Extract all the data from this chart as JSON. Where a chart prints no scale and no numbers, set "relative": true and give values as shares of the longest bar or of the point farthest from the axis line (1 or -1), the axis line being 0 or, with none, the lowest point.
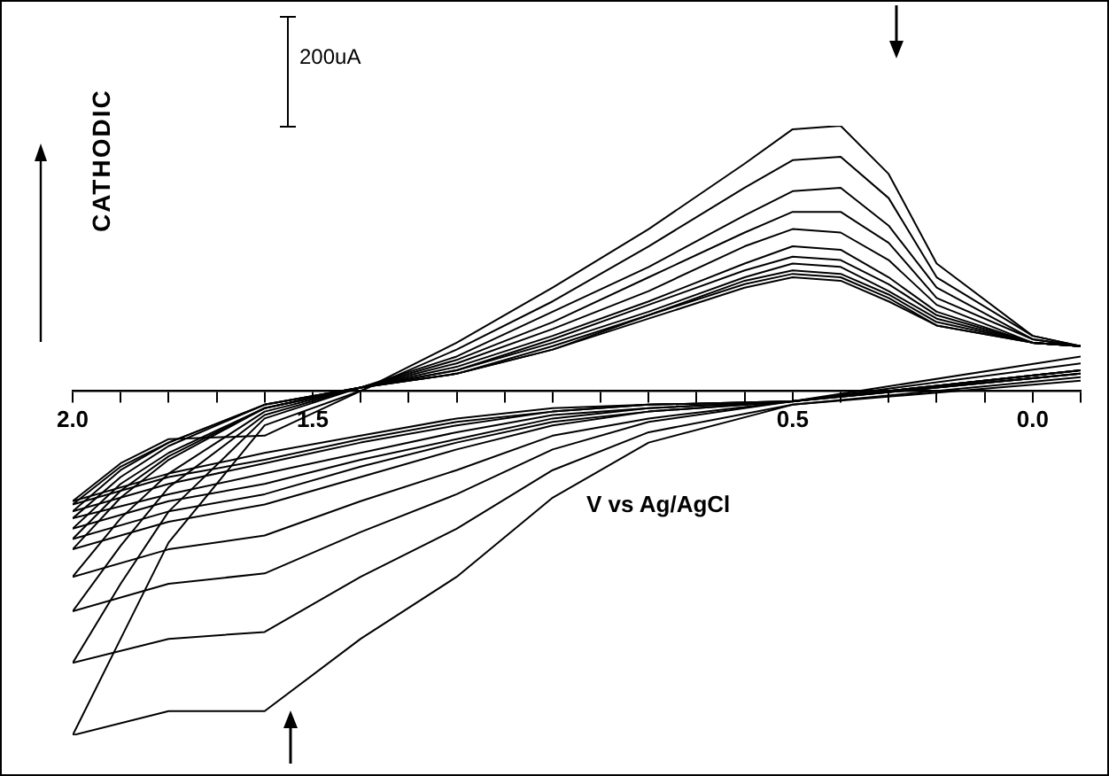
{
  "chart_data": {
    "type": "line",
    "xlabel": "V vs Ag/AgCl",
    "ylabel": "CATHODIC",
    "annotations": [
      "200uA"
    ],
    "relative": true,
    "legend": false,
    "marker": "none",
    "xlim": [
      2,
      -0.1
    ],
    "xticks": [
      {
        "value": 2,
        "label": "2.0"
      },
      {
        "value": 1.9,
        "label": null
      },
      {
        "value": 1.8,
        "label": null
      },
      {
        "value": 1.7,
        "label": null
      },
      {
        "value": 1.6,
        "label": null
      },
      {
        "value": 1.5,
        "label": "1.5"
      },
      {
        "value": 1.4,
        "label": null
      },
      {
        "value": 1.3,
        "label": null
      },
      {
        "value": 1.2,
        "label": null
      },
      {
        "value": 1.1,
        "label": null
      },
      {
        "value": 1,
        "label": null
      },
      {
        "value": 0.9,
        "label": null
      },
      {
        "value": 0.8,
        "label": null
      },
      {
        "value": 0.7,
        "label": null
      },
      {
        "value": 0.6,
        "label": null
      },
      {
        "value": 0.5,
        "label": "0.5"
      },
      {
        "value": 0.4,
        "label": null
      },
      {
        "value": 0.3,
        "label": null
      },
      {
        "value": 0.2,
        "label": null
      },
      {
        "value": 0.1,
        "label": null
      },
      {
        "value": 0,
        "label": "0.0"
      },
      {
        "value": -0.1,
        "label": null
      }
    ],
    "series": [
      {
        "color": "#000000",
        "x": [
          2.0,
          1.9,
          1.8,
          1.6,
          1.4,
          1.2,
          1.0,
          0.8,
          0.6,
          0.5,
          0.4,
          0.3,
          0.2,
          0.0,
          -0.1
        ],
        "values": [
          -0.32,
          -0.21,
          -0.14,
          -0.13,
          0,
          0.14,
          0.3,
          0.47,
          0.66,
          0.76,
          0.77,
          0.63,
          0.37,
          0.16,
          0.13
        ]
      },
      {
        "color": "#000000",
        "x": [
          -0.1,
          0.5,
          0.8,
          1.0,
          1.2,
          1.4,
          1.6,
          1.8,
          2.0
        ],
        "values": [
          0.03,
          -0.04,
          -0.15,
          -0.31,
          -0.54,
          -0.72,
          -0.93,
          -0.93,
          -1.0
        ]
      },
      {
        "color": "#000000",
        "x": [
          2.0,
          1.9,
          1.8,
          1.6,
          1.4,
          1.2,
          1.0,
          0.8,
          0.6,
          0.5,
          0.4,
          0.3,
          0.2,
          0.0,
          -0.1
        ],
        "values": [
          -1.0,
          -0.72,
          -0.44,
          -0.1,
          0,
          0.12,
          0.26,
          0.42,
          0.59,
          0.67,
          0.68,
          0.56,
          0.33,
          0.16,
          0.13
        ]
      },
      {
        "color": "#000000",
        "x": [
          -0.1,
          0.5,
          0.8,
          1.0,
          1.2,
          1.4,
          1.6,
          1.8,
          2.0
        ],
        "values": [
          0.04,
          -0.04,
          -0.12,
          -0.23,
          -0.4,
          -0.54,
          -0.7,
          -0.72,
          -0.79
        ]
      },
      {
        "color": "#000000",
        "x": [
          2.0,
          1.9,
          1.8,
          1.6,
          1.4,
          1.2,
          1.0,
          0.8,
          0.6,
          0.5,
          0.4,
          0.3,
          0.2,
          0.0,
          -0.1
        ],
        "values": [
          -0.79,
          -0.56,
          -0.35,
          -0.08,
          0.01,
          0.1,
          0.23,
          0.36,
          0.51,
          0.58,
          0.59,
          0.48,
          0.3,
          0.15,
          0.13
        ]
      },
      {
        "color": "#000000",
        "x": [
          -0.1,
          0.5,
          0.8,
          1.0,
          1.2,
          1.4,
          1.6,
          1.8,
          2.0
        ],
        "values": [
          0.05,
          -0.03,
          -0.09,
          -0.17,
          -0.3,
          -0.41,
          -0.53,
          -0.56,
          -0.64
        ]
      },
      {
        "color": "#000000",
        "x": [
          2.0,
          1.9,
          1.8,
          1.6,
          1.4,
          1.2,
          1.0,
          0.8,
          0.6,
          0.5,
          0.4,
          0.3,
          0.2,
          0.0,
          -0.1
        ],
        "values": [
          -0.64,
          -0.45,
          -0.28,
          -0.07,
          0.01,
          0.09,
          0.2,
          0.33,
          0.46,
          0.52,
          0.52,
          0.43,
          0.27,
          0.15,
          0.13
        ]
      },
      {
        "color": "#000000",
        "x": [
          -0.1,
          0.5,
          0.8,
          1.0,
          1.2,
          1.4,
          1.6,
          1.8,
          2.0
        ],
        "values": [
          0.05,
          -0.03,
          -0.08,
          -0.13,
          -0.23,
          -0.32,
          -0.42,
          -0.46,
          -0.54
        ]
      },
      {
        "color": "#000000",
        "x": [
          2.0,
          1.9,
          1.8,
          1.6,
          1.4,
          1.2,
          1.0,
          0.8,
          0.6,
          0.5,
          0.4,
          0.3,
          0.2,
          0.0,
          -0.1
        ],
        "values": [
          -0.54,
          -0.37,
          -0.24,
          -0.06,
          0.01,
          0.08,
          0.18,
          0.29,
          0.42,
          0.47,
          0.46,
          0.38,
          0.25,
          0.14,
          0.13
        ]
      },
      {
        "color": "#000000",
        "x": [
          -0.1,
          0.5,
          0.8,
          1.0,
          1.2,
          1.4,
          1.6,
          1.8,
          2.0
        ],
        "values": [
          0.05,
          -0.03,
          -0.06,
          -0.1,
          -0.17,
          -0.25,
          -0.33,
          -0.38,
          -0.46
        ]
      },
      {
        "color": "#000000",
        "x": [
          2.0,
          1.9,
          1.8,
          1.6,
          1.4,
          1.2,
          1.0,
          0.8,
          0.6,
          0.5,
          0.4,
          0.3,
          0.2,
          0.0,
          -0.1
        ],
        "values": [
          -0.46,
          -0.31,
          -0.2,
          -0.05,
          0.01,
          0.07,
          0.16,
          0.26,
          0.37,
          0.42,
          0.41,
          0.33,
          0.23,
          0.14,
          0.13
        ]
      },
      {
        "color": "#000000",
        "x": [
          -0.1,
          0.5,
          0.8,
          1.0,
          1.2,
          1.4,
          1.6,
          1.8,
          2.0
        ],
        "values": [
          0.06,
          -0.03,
          -0.06,
          -0.09,
          -0.15,
          -0.22,
          -0.3,
          -0.35,
          -0.43
        ]
      },
      {
        "color": "#000000",
        "x": [
          2.0,
          1.9,
          1.8,
          1.6,
          1.4,
          1.2,
          1.0,
          0.8,
          0.6,
          0.5,
          0.4,
          0.3,
          0.2,
          0.0,
          -0.1
        ],
        "values": [
          -0.43,
          -0.29,
          -0.19,
          -0.05,
          0.01,
          0.06,
          0.15,
          0.25,
          0.35,
          0.39,
          0.38,
          0.31,
          0.22,
          0.14,
          0.13
        ]
      },
      {
        "color": "#000000",
        "x": [
          -0.1,
          0.5,
          0.8,
          1.0,
          1.2,
          1.4,
          1.6,
          1.8,
          2.0
        ],
        "values": [
          0.06,
          -0.03,
          -0.05,
          -0.08,
          -0.14,
          -0.2,
          -0.27,
          -0.32,
          -0.4
        ]
      },
      {
        "color": "#000000",
        "x": [
          2.0,
          1.9,
          1.8,
          1.6,
          1.4,
          1.2,
          1.0,
          0.8,
          0.6,
          0.5,
          0.4,
          0.3,
          0.2,
          0.0,
          -0.1
        ],
        "values": [
          -0.4,
          -0.27,
          -0.18,
          -0.05,
          0.01,
          0.06,
          0.14,
          0.23,
          0.33,
          0.37,
          0.36,
          0.29,
          0.21,
          0.14,
          0.13
        ]
      },
      {
        "color": "#000000",
        "x": [
          -0.1,
          0.5,
          0.8,
          1.0,
          1.2,
          1.4,
          1.6,
          1.8,
          2.0
        ],
        "values": [
          0.06,
          -0.03,
          -0.05,
          -0.07,
          -0.12,
          -0.18,
          -0.24,
          -0.3,
          -0.37
        ]
      },
      {
        "color": "#000000",
        "x": [
          2.0,
          1.9,
          1.8,
          1.6,
          1.4,
          1.2,
          1.0,
          0.8,
          0.6,
          0.5,
          0.4,
          0.3,
          0.2,
          0.0,
          -0.1
        ],
        "values": [
          -0.37,
          -0.25,
          -0.16,
          -0.04,
          0.01,
          0.05,
          0.13,
          0.22,
          0.32,
          0.35,
          0.34,
          0.28,
          0.2,
          0.14,
          0.13
        ]
      },
      {
        "color": "#000000",
        "x": [
          -0.1,
          0.5,
          0.8,
          1.0,
          1.2,
          1.4,
          1.6,
          1.8,
          2.0
        ],
        "values": [
          0.06,
          -0.03,
          -0.04,
          -0.06,
          -0.1,
          -0.15,
          -0.21,
          -0.27,
          -0.35
        ]
      },
      {
        "color": "#000000",
        "x": [
          2.0,
          1.9,
          1.8,
          1.6,
          1.4,
          1.2,
          1.0,
          0.8,
          0.6,
          0.5,
          0.4,
          0.3,
          0.2,
          0.0,
          -0.1
        ],
        "values": [
          -0.35,
          -0.23,
          -0.15,
          -0.04,
          0.01,
          0.05,
          0.12,
          0.22,
          0.31,
          0.34,
          0.33,
          0.27,
          0.19,
          0.14,
          0.13
        ]
      },
      {
        "color": "#000000",
        "x": [
          -0.1,
          0.5,
          0.8,
          1.0,
          1.2,
          1.4,
          1.6,
          1.8,
          2.0
        ],
        "values": [
          0.08,
          -0.03,
          -0.04,
          -0.06,
          -0.09,
          -0.14,
          -0.2,
          -0.25,
          -0.33
        ]
      },
      {
        "color": "#000000",
        "x": [
          2.0,
          1.9,
          1.8,
          1.6,
          1.4,
          1.2,
          1.0,
          0.8,
          0.6,
          0.5,
          0.4,
          0.3,
          0.2,
          0.0,
          -0.1
        ],
        "values": [
          -0.33,
          -0.22,
          -0.15,
          -0.04,
          0.01,
          0.05,
          0.12,
          0.21,
          0.3,
          0.33,
          0.32,
          0.26,
          0.19,
          0.14,
          0.13
        ]
      },
      {
        "color": "#000000",
        "x": [
          -0.1,
          0.5,
          0.8,
          1.0,
          1.2,
          1.4,
          1.6,
          1.8,
          2.0
        ],
        "values": [
          0.1,
          -0.03,
          -0.04,
          -0.05,
          -0.08,
          -0.13,
          -0.18,
          -0.24,
          -0.32
        ]
      }
    ]
  }
}
